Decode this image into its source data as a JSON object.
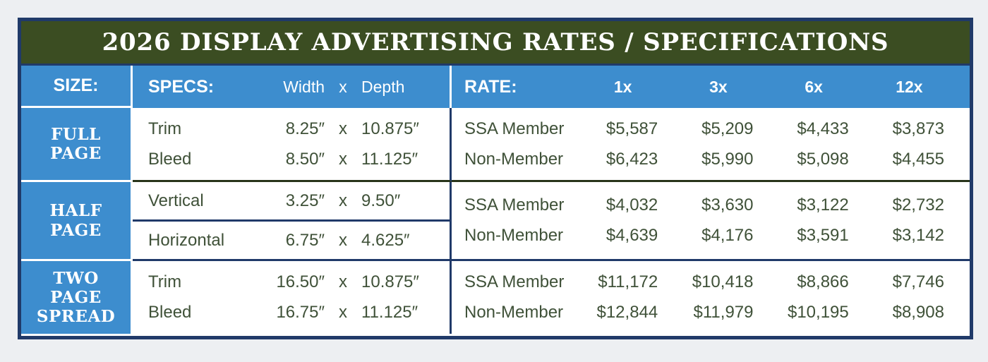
{
  "title": "2026 DISPLAY ADVERTISING RATES / SPECIFICATIONS",
  "colors": {
    "outer_background": "#edeff2",
    "border_navy": "#203a69",
    "title_bar_green": "#3b4d22",
    "header_blue": "#3d8dce",
    "body_text_green": "#3f5138",
    "section_rule_green": "#28351a",
    "white": "#ffffff"
  },
  "header": {
    "size_label": "SIZE:",
    "specs_label": "SPECS:",
    "width_label": "Width",
    "x_label": "x",
    "depth_label": "Depth",
    "rate_label": "RATE:",
    "frequencies": [
      "1x",
      "3x",
      "6x",
      "12x"
    ]
  },
  "sections": [
    {
      "size_label_lines": [
        "FULL",
        "PAGE"
      ],
      "specs": [
        {
          "label": "Trim",
          "width": "8.25″",
          "x": "x",
          "depth": "10.875″"
        },
        {
          "label": "Bleed",
          "width": "8.50″",
          "x": "x",
          "depth": "11.125″"
        }
      ],
      "rates": [
        {
          "label": "SSA Member",
          "values": [
            "$5,587",
            "$5,209",
            "$4,433",
            "$3,873"
          ]
        },
        {
          "label": "Non-Member",
          "values": [
            "$6,423",
            "$5,990",
            "$5,098",
            "$4,455"
          ]
        }
      ]
    },
    {
      "size_label_lines": [
        "HALF",
        "PAGE"
      ],
      "specs": [
        {
          "label": "Vertical",
          "width": "3.25″",
          "x": "x",
          "depth": "9.50″"
        },
        {
          "label": "Horizontal",
          "width": "6.75″",
          "x": "x",
          "depth": "4.625″"
        }
      ],
      "rates": [
        {
          "label": "SSA Member",
          "values": [
            "$4,032",
            "$3,630",
            "$3,122",
            "$2,732"
          ]
        },
        {
          "label": "Non-Member",
          "values": [
            "$4,639",
            "$4,176",
            "$3,591",
            "$3,142"
          ]
        }
      ]
    },
    {
      "size_label_lines": [
        "TWO",
        "PAGE",
        "SPREAD"
      ],
      "specs": [
        {
          "label": "Trim",
          "width": "16.50″",
          "x": "x",
          "depth": "10.875″"
        },
        {
          "label": "Bleed",
          "width": "16.75″",
          "x": "x",
          "depth": "11.125″"
        }
      ],
      "rates": [
        {
          "label": "SSA Member",
          "values": [
            "$11,172",
            "$10,418",
            "$8,866",
            "$7,746"
          ]
        },
        {
          "label": "Non-Member",
          "values": [
            "$12,844",
            "$11,979",
            "$10,195",
            "$8,908"
          ]
        }
      ]
    }
  ]
}
